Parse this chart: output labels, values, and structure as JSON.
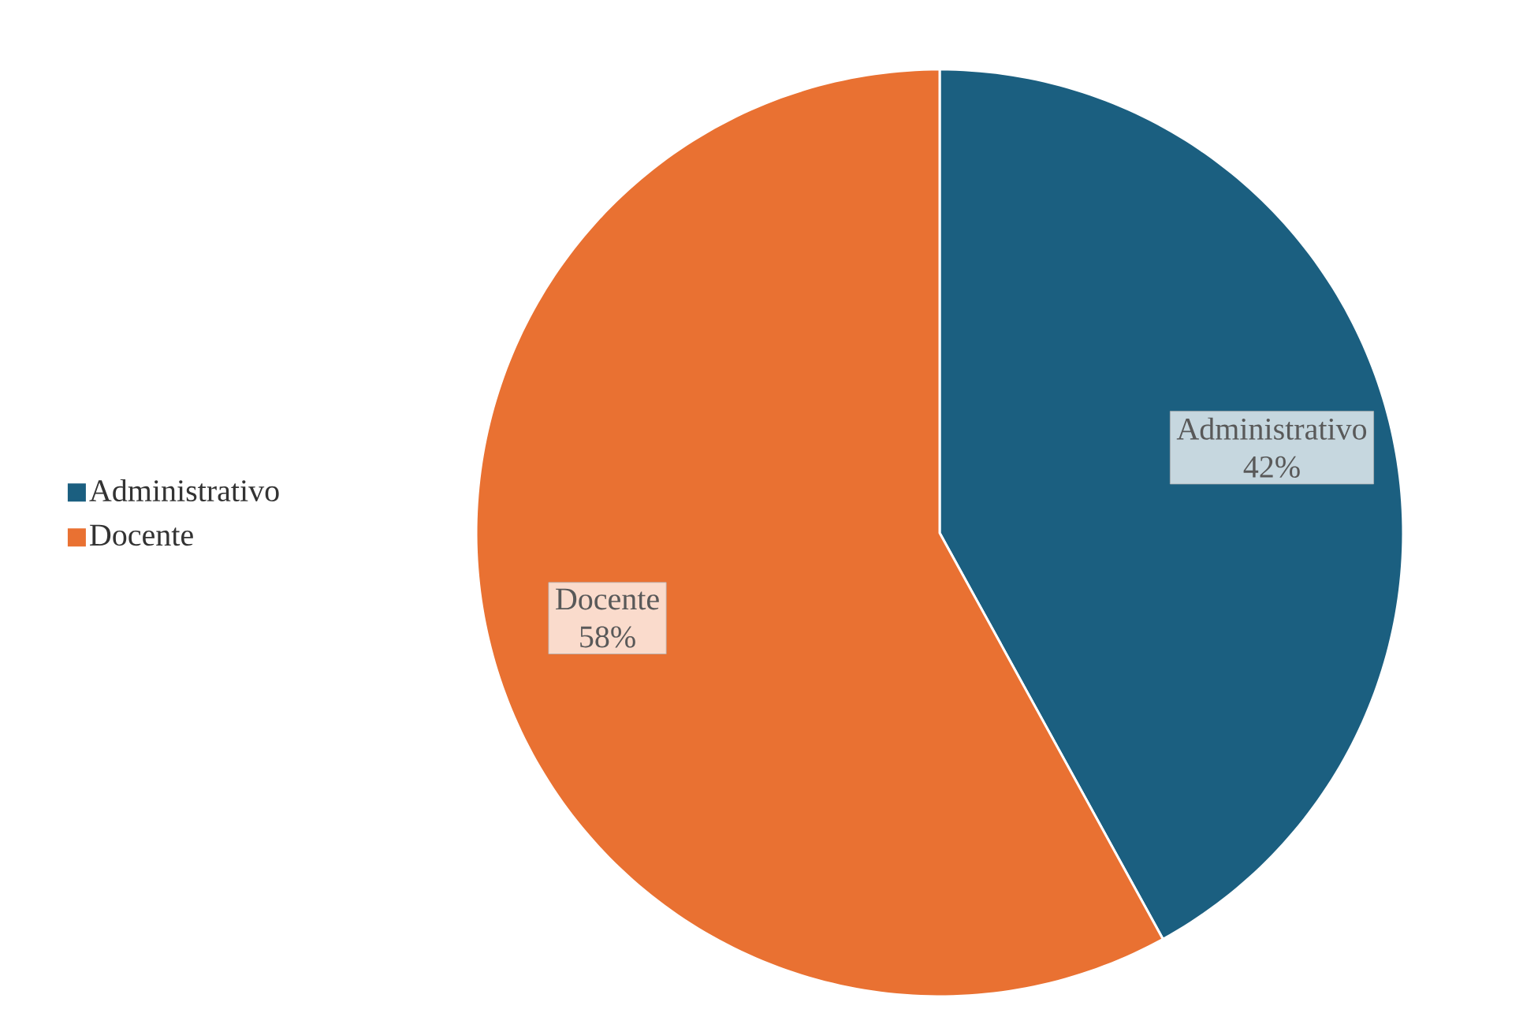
{
  "chart_data": {
    "type": "pie",
    "categories": [
      "Administrativo",
      "Docente"
    ],
    "values": [
      42,
      58
    ],
    "colors": [
      "#1b5f80",
      "#e97132"
    ],
    "value_labels": [
      "42%",
      "58%"
    ],
    "data_labels": true,
    "legend": "left"
  }
}
